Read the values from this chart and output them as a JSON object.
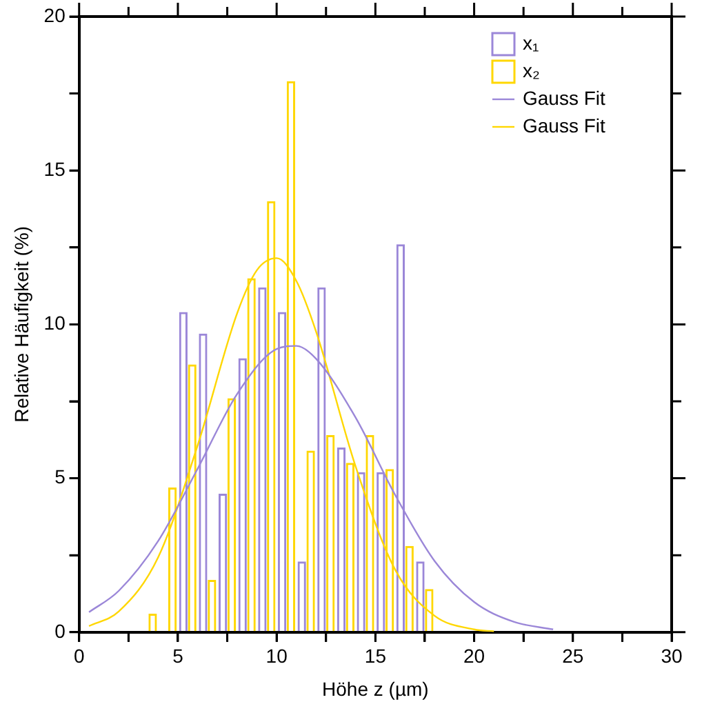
{
  "chart_data": {
    "type": "bar",
    "xlabel": "Höhe z (µm)",
    "ylabel": "Relative Häufigkeit (%)",
    "x": [
      3.5,
      4.5,
      5.5,
      6.5,
      7.5,
      8.5,
      9.5,
      10.5,
      11.5,
      12.5,
      13.5,
      14.5,
      15.5,
      16.5,
      17.5
    ],
    "series": [
      {
        "name": "x₁",
        "color": "#9b87d8",
        "values": [
          0,
          0,
          10.4,
          9.7,
          4.5,
          8.9,
          11.2,
          10.4,
          2.3,
          11.2,
          6.0,
          5.2,
          5.2,
          12.6,
          2.3
        ]
      },
      {
        "name": "x₂",
        "color": "#ffd700",
        "values": [
          0.6,
          4.7,
          8.7,
          1.7,
          7.6,
          11.5,
          14.0,
          17.9,
          5.9,
          6.4,
          5.5,
          6.4,
          5.3,
          2.8,
          1.4
        ]
      },
      {
        "name": "Gauss Fit",
        "color": "#9b87d8",
        "type": "line",
        "x": [
          0.5,
          2,
          4,
          6,
          8,
          10,
          11,
          12,
          14,
          16,
          18,
          20,
          22,
          24
        ],
        "values": [
          0.65,
          1.34,
          2.96,
          5.31,
          7.74,
          9.2,
          9.3,
          8.88,
          6.97,
          4.46,
          2.31,
          0.98,
          0.34,
          0.09
        ]
      },
      {
        "name": "Gauss Fit",
        "color": "#ffd700",
        "type": "line",
        "x": [
          0.5,
          2,
          4,
          6,
          8,
          9,
          10,
          11,
          12,
          14,
          16,
          18,
          20,
          21
        ],
        "values": [
          0.2,
          0.67,
          2.43,
          6.07,
          10.36,
          11.76,
          12.15,
          11.41,
          9.76,
          5.38,
          2.03,
          0.53,
          0.09,
          0.03
        ]
      }
    ],
    "xlim": [
      0,
      30
    ],
    "ylim": [
      0,
      20
    ],
    "xticks": [
      0,
      {
        "value": 2.5,
        "label": null
      },
      5,
      {
        "value": 7.5,
        "label": null
      },
      10,
      {
        "value": 12.5,
        "label": null
      },
      15,
      {
        "value": 17.5,
        "label": null
      },
      20,
      {
        "value": 22.5,
        "label": null
      },
      25,
      {
        "value": 27.5,
        "label": null
      },
      30
    ],
    "yticks": [
      0,
      {
        "value": 2.5,
        "label": null
      },
      5,
      {
        "value": 7.5,
        "label": null
      },
      10,
      {
        "value": 12.5,
        "label": null
      },
      15,
      {
        "value": 17.5,
        "label": null
      },
      20
    ],
    "legend": "top right"
  }
}
